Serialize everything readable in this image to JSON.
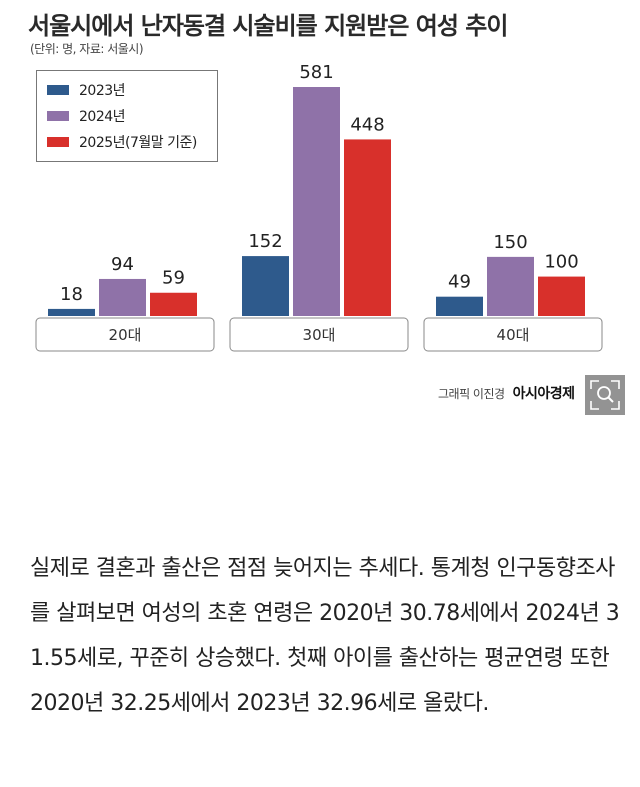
{
  "chart_data": {
    "type": "bar",
    "title": "서울시에서 난자동결 시술비를 지원받은 여성 추이",
    "subtitle": "(단위: 명, 자료: 서울시)",
    "categories": [
      "20대",
      "30대",
      "40대"
    ],
    "series": [
      {
        "name": "2023년",
        "color": "#2e5a8c",
        "values": [
          18,
          152,
          49
        ]
      },
      {
        "name": "2024년",
        "color": "#8f72a8",
        "values": [
          94,
          581,
          150
        ]
      },
      {
        "name": "2025년(7월말 기준)",
        "color": "#d8302b",
        "values": [
          59,
          448,
          100
        ]
      }
    ],
    "ylim": [
      0,
      581
    ],
    "legend_position": "top-left",
    "grid": false
  },
  "credit": {
    "byline": "그래픽 이진경",
    "brand": "아시아경제"
  },
  "zoom_button": {
    "icon": "zoom-in-icon"
  },
  "article": {
    "text": "실제로 결혼과 출산은 점점 늦어지는 추세다. 통계청 인구동향조사를 살펴보면 여성의 초혼 연령은 2020년 30.78세에서 2024년 31.55세로, 꾸준히 상승했다. 첫째 아이를 출산하는 평균연령 또한 2020년 32.25세에서 2023년 32.96세로 올랐다."
  }
}
